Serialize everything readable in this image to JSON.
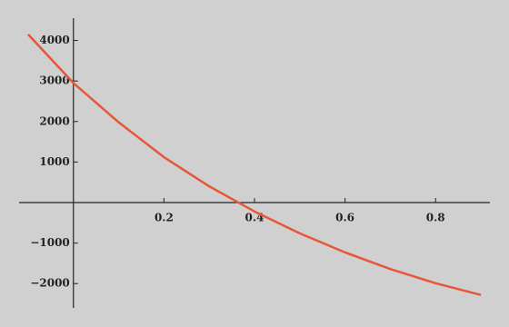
{
  "chart_data": {
    "type": "line",
    "x": [
      -0.1,
      0,
      0.1,
      0.2,
      0.3,
      0.4,
      0.5,
      0.6,
      0.7,
      0.8,
      0.9
    ],
    "series": [
      {
        "color": "#e8563a",
        "values": [
          4150,
          2950,
          1980,
          1120,
          400,
          -220,
          -760,
          -1230,
          -1640,
          -1990,
          -2280
        ]
      }
    ],
    "xlim": [
      -0.12,
      0.92
    ],
    "ylim": [
      -2600,
      4550
    ],
    "xticks": [
      0.2,
      0.4,
      0.6,
      0.8
    ],
    "yticks": [
      {
        "value": -2000,
        "label": "−2000"
      },
      {
        "value": -1000,
        "label": "−1000"
      },
      1000,
      2000,
      3000,
      4000
    ]
  }
}
